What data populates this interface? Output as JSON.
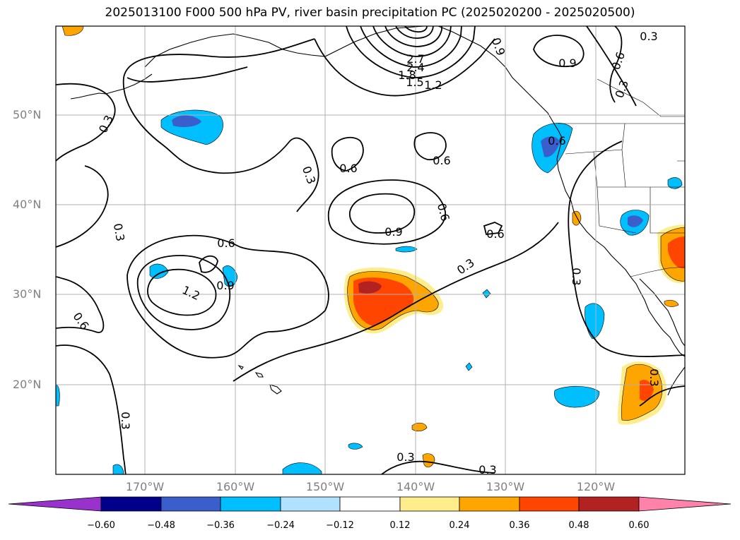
{
  "title": "2025013100 F000 500 hPa PV, river basin precipitation PC (2025020200 - 2025020500)",
  "lat_labels": [
    "50°N",
    "40°N",
    "30°N",
    "20°N"
  ],
  "lon_labels": [
    "170°W",
    "160°W",
    "150°W",
    "140°W",
    "130°W",
    "120°W"
  ],
  "colorbar": {
    "ticks": [
      "−0.60",
      "−0.48",
      "−0.36",
      "−0.24",
      "−0.12",
      "0.12",
      "0.24",
      "0.36",
      "0.48",
      "0.60"
    ],
    "colors": [
      "#9932cc",
      "#00008b",
      "#3a5fcd",
      "#00bfff",
      "#b0e2ff",
      "#ffffff",
      "#ffec8b",
      "#ffa500",
      "#ff4500",
      "#b22222",
      "#ff82ab"
    ]
  },
  "contour_labels": [
    "2.7",
    "2.4",
    "1.8",
    "1.5",
    "1.2",
    "0.9",
    "0.3",
    "0.6",
    "0.9",
    "0.3",
    "0.3",
    "0.3",
    "0.6",
    "0.6",
    "0.9",
    "0.6",
    "0.6",
    "0.6",
    "0.3",
    "0.3",
    "0.6",
    "0.9",
    "1.2",
    "0.6",
    "0.3",
    "0.3",
    "0.3",
    "0.3",
    "0.3"
  ]
}
